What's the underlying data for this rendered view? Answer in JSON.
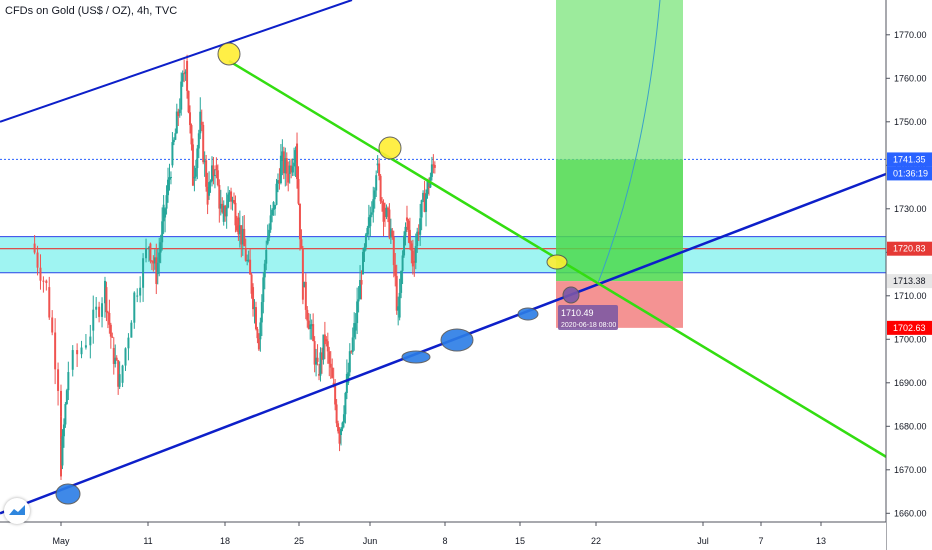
{
  "header": {
    "title": "CFDs on Gold (US$ / OZ), 4h, TVC"
  },
  "colors": {
    "up": "#26a69a",
    "down": "#ef5350",
    "channel": "#0d1fc9",
    "trend": "#33dd11",
    "zone_fill": "#7ff0ee",
    "zone_line": "#2d43e8",
    "resistance_line": "#e53935",
    "target": "#4cd94c",
    "stop": "#f28080",
    "marker_yellow": "#ffee33",
    "marker_blue": "#2b7de6"
  },
  "chart_data": {
    "type": "candlestick",
    "title": "CFDs on Gold (US$ / OZ), 4h, TVC",
    "xlabel": "",
    "ylabel": "",
    "ylim": [
      1658,
      1778
    ],
    "y_ticks": [
      "1660.00",
      "1670.00",
      "1680.00",
      "1690.00",
      "1700.00",
      "1710.00",
      "1720.00",
      "1730.00",
      "1740.00",
      "1750.00",
      "1760.00",
      "1770.00"
    ],
    "x_ticks": [
      "May",
      "11",
      "18",
      "25",
      "Jun",
      "8",
      "15",
      "22",
      "Jul",
      "7",
      "13"
    ],
    "grid": false,
    "legend": "none",
    "series": [
      {
        "name": "",
        "points": [
          [
            "2020-04-27",
            1722
          ],
          [
            "2020-04-29",
            1712
          ],
          [
            "2020-05-01",
            1685
          ],
          [
            "2020-05-01",
            1671
          ],
          [
            "2020-05-02",
            1693
          ],
          [
            "2020-05-05",
            1702
          ],
          [
            "2020-05-07",
            1712
          ],
          [
            "2020-05-08",
            1698
          ],
          [
            "2020-05-09",
            1690
          ],
          [
            "2020-05-11",
            1710
          ],
          [
            "2020-05-13",
            1722
          ],
          [
            "2020-05-14",
            1715
          ],
          [
            "2020-05-15",
            1728
          ],
          [
            "2020-05-16",
            1740
          ],
          [
            "2020-05-17",
            1752
          ],
          [
            "2020-05-18",
            1764
          ],
          [
            "2020-05-19",
            1737
          ],
          [
            "2020-05-20",
            1750
          ],
          [
            "2020-05-21",
            1733
          ],
          [
            "2020-05-22",
            1740
          ],
          [
            "2020-05-23",
            1727
          ],
          [
            "2020-05-24",
            1734
          ],
          [
            "2020-05-25",
            1728
          ],
          [
            "2020-05-26",
            1721
          ],
          [
            "2020-05-27",
            1712
          ],
          [
            "2020-05-28",
            1700
          ],
          [
            "2020-05-29",
            1722
          ],
          [
            "2020-05-30",
            1730
          ],
          [
            "2020-05-31",
            1741
          ],
          [
            "2020-06-01",
            1738
          ],
          [
            "2020-06-02",
            1745
          ],
          [
            "2020-06-03",
            1712
          ],
          [
            "2020-06-04",
            1703
          ],
          [
            "2020-06-05",
            1692
          ],
          [
            "2020-06-06",
            1700
          ],
          [
            "2020-06-07",
            1690
          ],
          [
            "2020-06-08",
            1678
          ],
          [
            "2020-06-09",
            1690
          ],
          [
            "2020-06-10",
            1702
          ],
          [
            "2020-06-11",
            1715
          ],
          [
            "2020-06-12",
            1726
          ],
          [
            "2020-06-13",
            1740
          ],
          [
            "2020-06-14",
            1730
          ],
          [
            "2020-06-15",
            1725
          ],
          [
            "2020-06-16",
            1705
          ],
          [
            "2020-06-17",
            1728
          ],
          [
            "2020-06-18",
            1718
          ],
          [
            "2020-06-19",
            1728
          ],
          [
            "2020-06-20",
            1735
          ],
          [
            "2020-06-21",
            1741
          ]
        ]
      }
    ],
    "horizontal_levels": [
      {
        "value": 1741.35,
        "label": "1741.35"
      },
      {
        "value": 1723.6
      },
      {
        "value": 1720.83,
        "label": "1720.83"
      },
      {
        "value": 1715.3
      },
      {
        "value": 1713.38,
        "label": "1713.38"
      },
      {
        "value": 1702.63,
        "label": "1702.63"
      }
    ],
    "countdown": "01:36:19",
    "position": {
      "target": 1741.35,
      "entry": 1713.38,
      "stop": 1702.63
    },
    "annotation": {
      "price": "1710.49",
      "time": "2020-06-18 08:00"
    }
  }
}
